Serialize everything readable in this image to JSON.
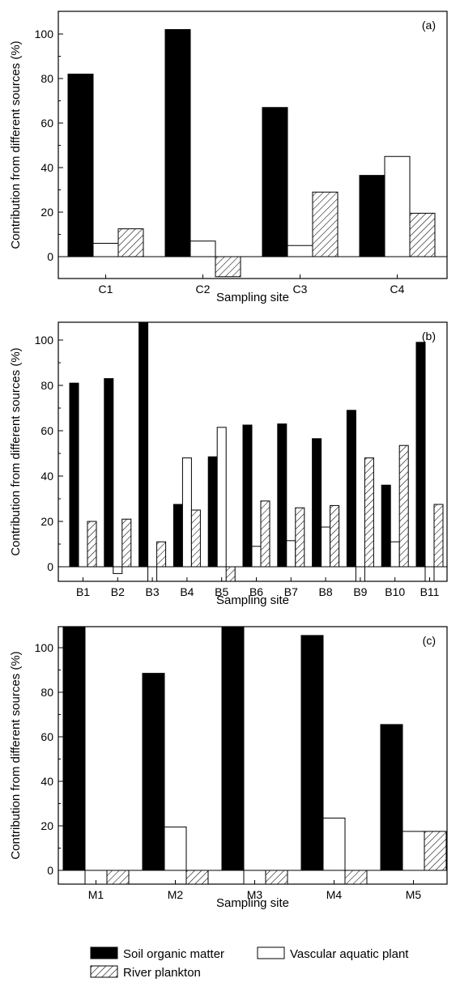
{
  "legend": {
    "soil": "Soil organic matter",
    "vascular": "Vascular aquatic plant",
    "plankton": "River plankton"
  },
  "colors": {
    "soil": "#000000",
    "vascular": "#ffffff",
    "plankton_hatch": "#000000"
  },
  "chart_data": [
    {
      "type": "bar",
      "panel_label": "(a)",
      "xlabel": "Sampling site",
      "ylabel": "Contribution from different sources (%)",
      "ylim": [
        -5,
        110
      ],
      "yticks": [
        0,
        20,
        40,
        60,
        80,
        100
      ],
      "categories": [
        "C1",
        "C2",
        "C3",
        "C4"
      ],
      "series": [
        {
          "name": "Soil organic matter",
          "values": [
            82,
            102,
            67,
            36.5
          ]
        },
        {
          "name": "Vascular aquatic plant",
          "values": [
            6,
            7,
            5,
            45
          ]
        },
        {
          "name": "River plankton",
          "values": [
            12.5,
            -9,
            29,
            19.5
          ]
        }
      ]
    },
    {
      "type": "bar",
      "panel_label": "(b)",
      "xlabel": "Sampling site",
      "ylabel": "Contribution from different sources (%)",
      "ylim": [
        -10,
        110
      ],
      "yticks": [
        0,
        20,
        40,
        60,
        80,
        100
      ],
      "categories": [
        "B1",
        "B2",
        "B3",
        "B4",
        "B5",
        "B6",
        "B7",
        "B8",
        "B9",
        "B10",
        "B11"
      ],
      "series": [
        {
          "name": "Soil organic matter",
          "values": [
            81,
            83,
            110,
            27.5,
            48.5,
            62.5,
            63,
            56.5,
            69,
            36,
            99
          ]
        },
        {
          "name": "Vascular aquatic plant",
          "values": [
            0,
            -3,
            -10,
            48,
            61.5,
            9,
            11.5,
            17.5,
            -10,
            11,
            -10
          ]
        },
        {
          "name": "River plankton",
          "values": [
            20,
            21,
            11,
            25,
            -10,
            29,
            26,
            27,
            48,
            53.5,
            27.5
          ]
        }
      ]
    },
    {
      "type": "bar",
      "panel_label": "(c)",
      "xlabel": "Sampling site",
      "ylabel": "Contribution from different sources (%)",
      "ylim": [
        -10,
        110
      ],
      "yticks": [
        0,
        20,
        40,
        60,
        80,
        100
      ],
      "categories": [
        "M1",
        "M2",
        "M3",
        "M4",
        "M5"
      ],
      "series": [
        {
          "name": "Soil organic matter",
          "values": [
            110,
            88.5,
            110,
            105.5,
            65.5
          ]
        },
        {
          "name": "Vascular aquatic plant",
          "values": [
            -10,
            19.5,
            -10,
            23.5,
            17.5
          ]
        },
        {
          "name": "River plankton",
          "values": [
            -10,
            -7,
            -9,
            -10,
            17.5
          ]
        }
      ]
    }
  ]
}
